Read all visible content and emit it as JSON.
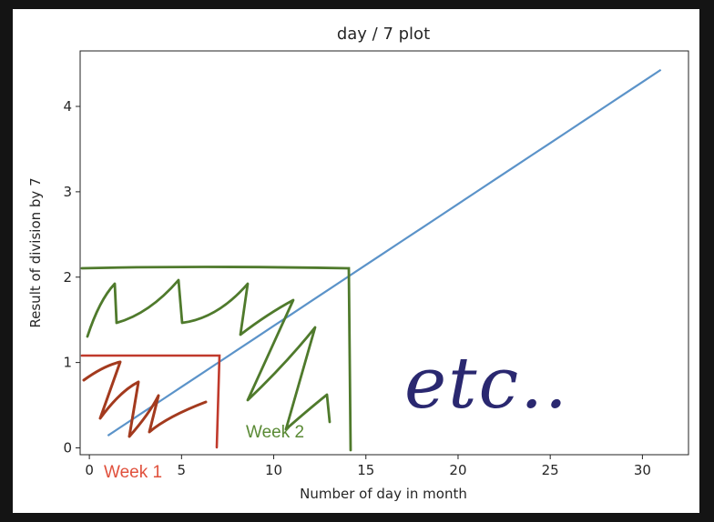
{
  "chart_data": {
    "type": "line",
    "title": "day / 7 plot",
    "xlabel": "Number of day in month",
    "ylabel": "Result of division by 7",
    "xlim": [
      -0.5,
      32.5
    ],
    "ylim": [
      -0.08,
      4.65
    ],
    "grid": false,
    "xticks": [
      0,
      5,
      10,
      15,
      20,
      25,
      30
    ],
    "yticks": [
      0,
      1,
      2,
      3,
      4
    ],
    "series": [
      {
        "x": [
          1,
          2,
          3,
          4,
          5,
          6,
          7,
          8,
          9,
          10,
          11,
          12,
          13,
          14,
          15,
          16,
          17,
          18,
          19,
          20,
          21,
          22,
          23,
          24,
          25,
          26,
          27,
          28,
          29,
          30,
          31
        ],
        "y": [
          0.143,
          0.286,
          0.429,
          0.571,
          0.714,
          0.857,
          1.0,
          1.143,
          1.286,
          1.429,
          1.571,
          1.714,
          1.857,
          2.0,
          2.143,
          2.286,
          2.429,
          2.571,
          2.714,
          2.857,
          3.0,
          3.143,
          3.286,
          3.429,
          3.571,
          3.714,
          3.857,
          4.0,
          4.143,
          4.286,
          4.429
        ],
        "color": "#5b93c9"
      }
    ],
    "annotations": [
      {
        "text": "Week 1",
        "color": "#e0503c"
      },
      {
        "text": "Week 2",
        "color": "#5a8a35"
      },
      {
        "text": "etc..",
        "color": "#2a2870"
      }
    ]
  },
  "colors": {
    "week1_ink": "#c0392b",
    "week1_scribble": "#a33a1e",
    "week2_ink": "#4f7a2c",
    "etc_ink": "#2a2870"
  }
}
